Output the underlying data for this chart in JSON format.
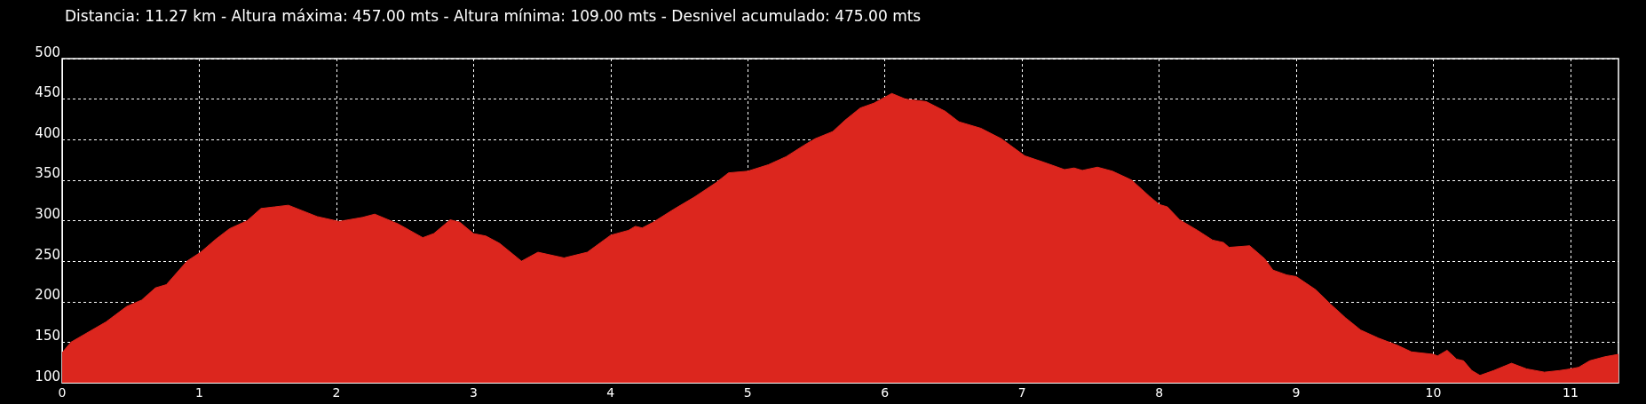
{
  "chart_data": {
    "type": "area",
    "title": "Distancia: 11.27 km - Altura máxima: 457.00 mts - Altura mínima: 109.00 mts - Desnivel acumulado: 475.00 mts",
    "series": [
      {
        "color": "#dc261e",
        "x": [
          0,
          0.064,
          0.32,
          0.47,
          0.58,
          0.68,
          0.76,
          0.91,
          1.01,
          1.12,
          1.22,
          1.35,
          1.45,
          1.55,
          1.65,
          1.86,
          2.02,
          2.19,
          2.28,
          2.45,
          2.63,
          2.71,
          2.83,
          2.9,
          3.0,
          3.09,
          3.19,
          3.35,
          3.47,
          3.66,
          3.83,
          4.0,
          4.13,
          4.18,
          4.23,
          4.31,
          4.46,
          4.61,
          4.77,
          4.86,
          5.0,
          5.15,
          5.28,
          5.41,
          5.49,
          5.62,
          5.71,
          5.82,
          5.92,
          6.05,
          6.15,
          6.3,
          6.44,
          6.54,
          6.7,
          6.85,
          7.02,
          7.16,
          7.31,
          7.38,
          7.44,
          7.55,
          7.66,
          7.8,
          7.93,
          8.0,
          8.06,
          8.15,
          8.28,
          8.39,
          8.47,
          8.51,
          8.66,
          8.77,
          8.83,
          8.93,
          9.0,
          9.14,
          9.25,
          9.36,
          9.47,
          9.6,
          9.74,
          9.84,
          10.0,
          10.03,
          10.1,
          10.17,
          10.22,
          10.28,
          10.34,
          10.44,
          10.57,
          10.68,
          10.81,
          10.92,
          11.0,
          11.06,
          11.14,
          11.25,
          11.35
        ],
        "values": [
          137,
          150,
          175,
          194,
          202,
          217,
          221,
          250,
          261,
          277,
          290,
          300,
          315,
          317,
          319,
          305,
          299,
          304,
          308,
          296,
          279,
          284,
          301,
          298,
          284,
          281,
          272,
          250,
          261,
          254,
          261,
          282,
          288,
          293,
          291,
          298,
          314,
          329,
          347,
          359,
          361,
          369,
          379,
          393,
          401,
          410,
          424,
          439,
          445,
          457,
          450,
          447,
          435,
          422,
          414,
          401,
          380,
          372,
          363,
          365,
          362,
          366,
          361,
          350,
          330,
          320,
          317,
          301,
          288,
          276,
          273,
          267,
          269,
          253,
          239,
          233,
          231,
          215,
          197,
          180,
          165,
          155,
          146,
          138,
          135,
          133,
          140,
          129,
          127,
          115,
          109,
          115,
          124,
          117,
          113,
          115,
          117,
          119,
          127,
          132,
          135
        ]
      }
    ],
    "xlim": [
      0,
      11.35
    ],
    "xticks": [
      0,
      1,
      2,
      3,
      4,
      5,
      6,
      7,
      8,
      9,
      10,
      11
    ],
    "ylim": [
      100,
      500
    ],
    "yticks": [
      100,
      150,
      200,
      250,
      300,
      350,
      400,
      450,
      500
    ],
    "grid": true,
    "marker": "none"
  }
}
